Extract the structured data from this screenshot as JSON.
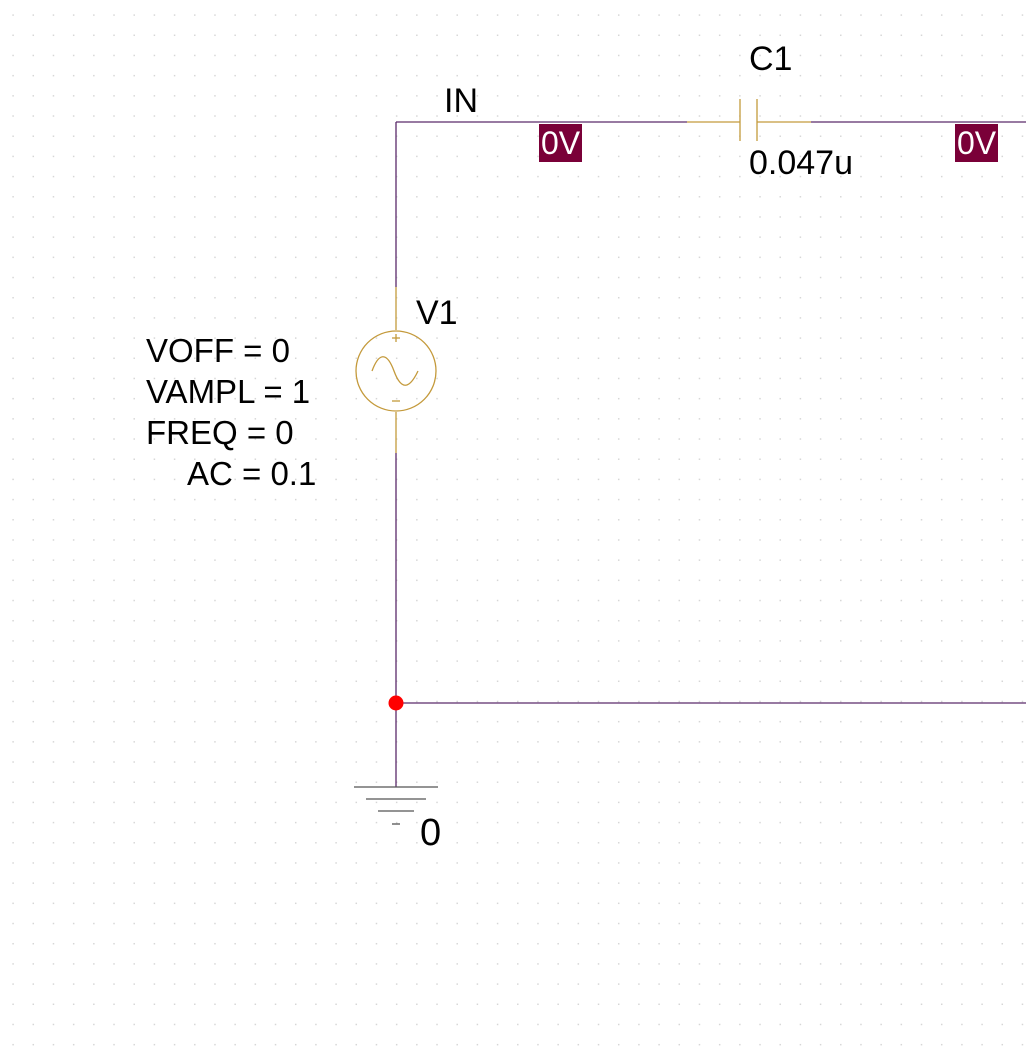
{
  "colors": {
    "wire": "#5a2a6a",
    "component": "#c49a3c",
    "voltage_marker_bg": "#7a0038",
    "voltage_marker_text": "#ffffff",
    "junction": "#ff0000",
    "text": "#000000"
  },
  "nets": {
    "in_label": "IN"
  },
  "capacitor": {
    "refdes": "C1",
    "value": "0.047u"
  },
  "source": {
    "refdes": "V1",
    "params": [
      "VOFF = 0",
      "VAMPL = 1",
      "FREQ = 0",
      "AC = 0.1"
    ]
  },
  "ground": {
    "label": "0"
  },
  "voltage_markers": [
    "0V",
    "0V"
  ]
}
